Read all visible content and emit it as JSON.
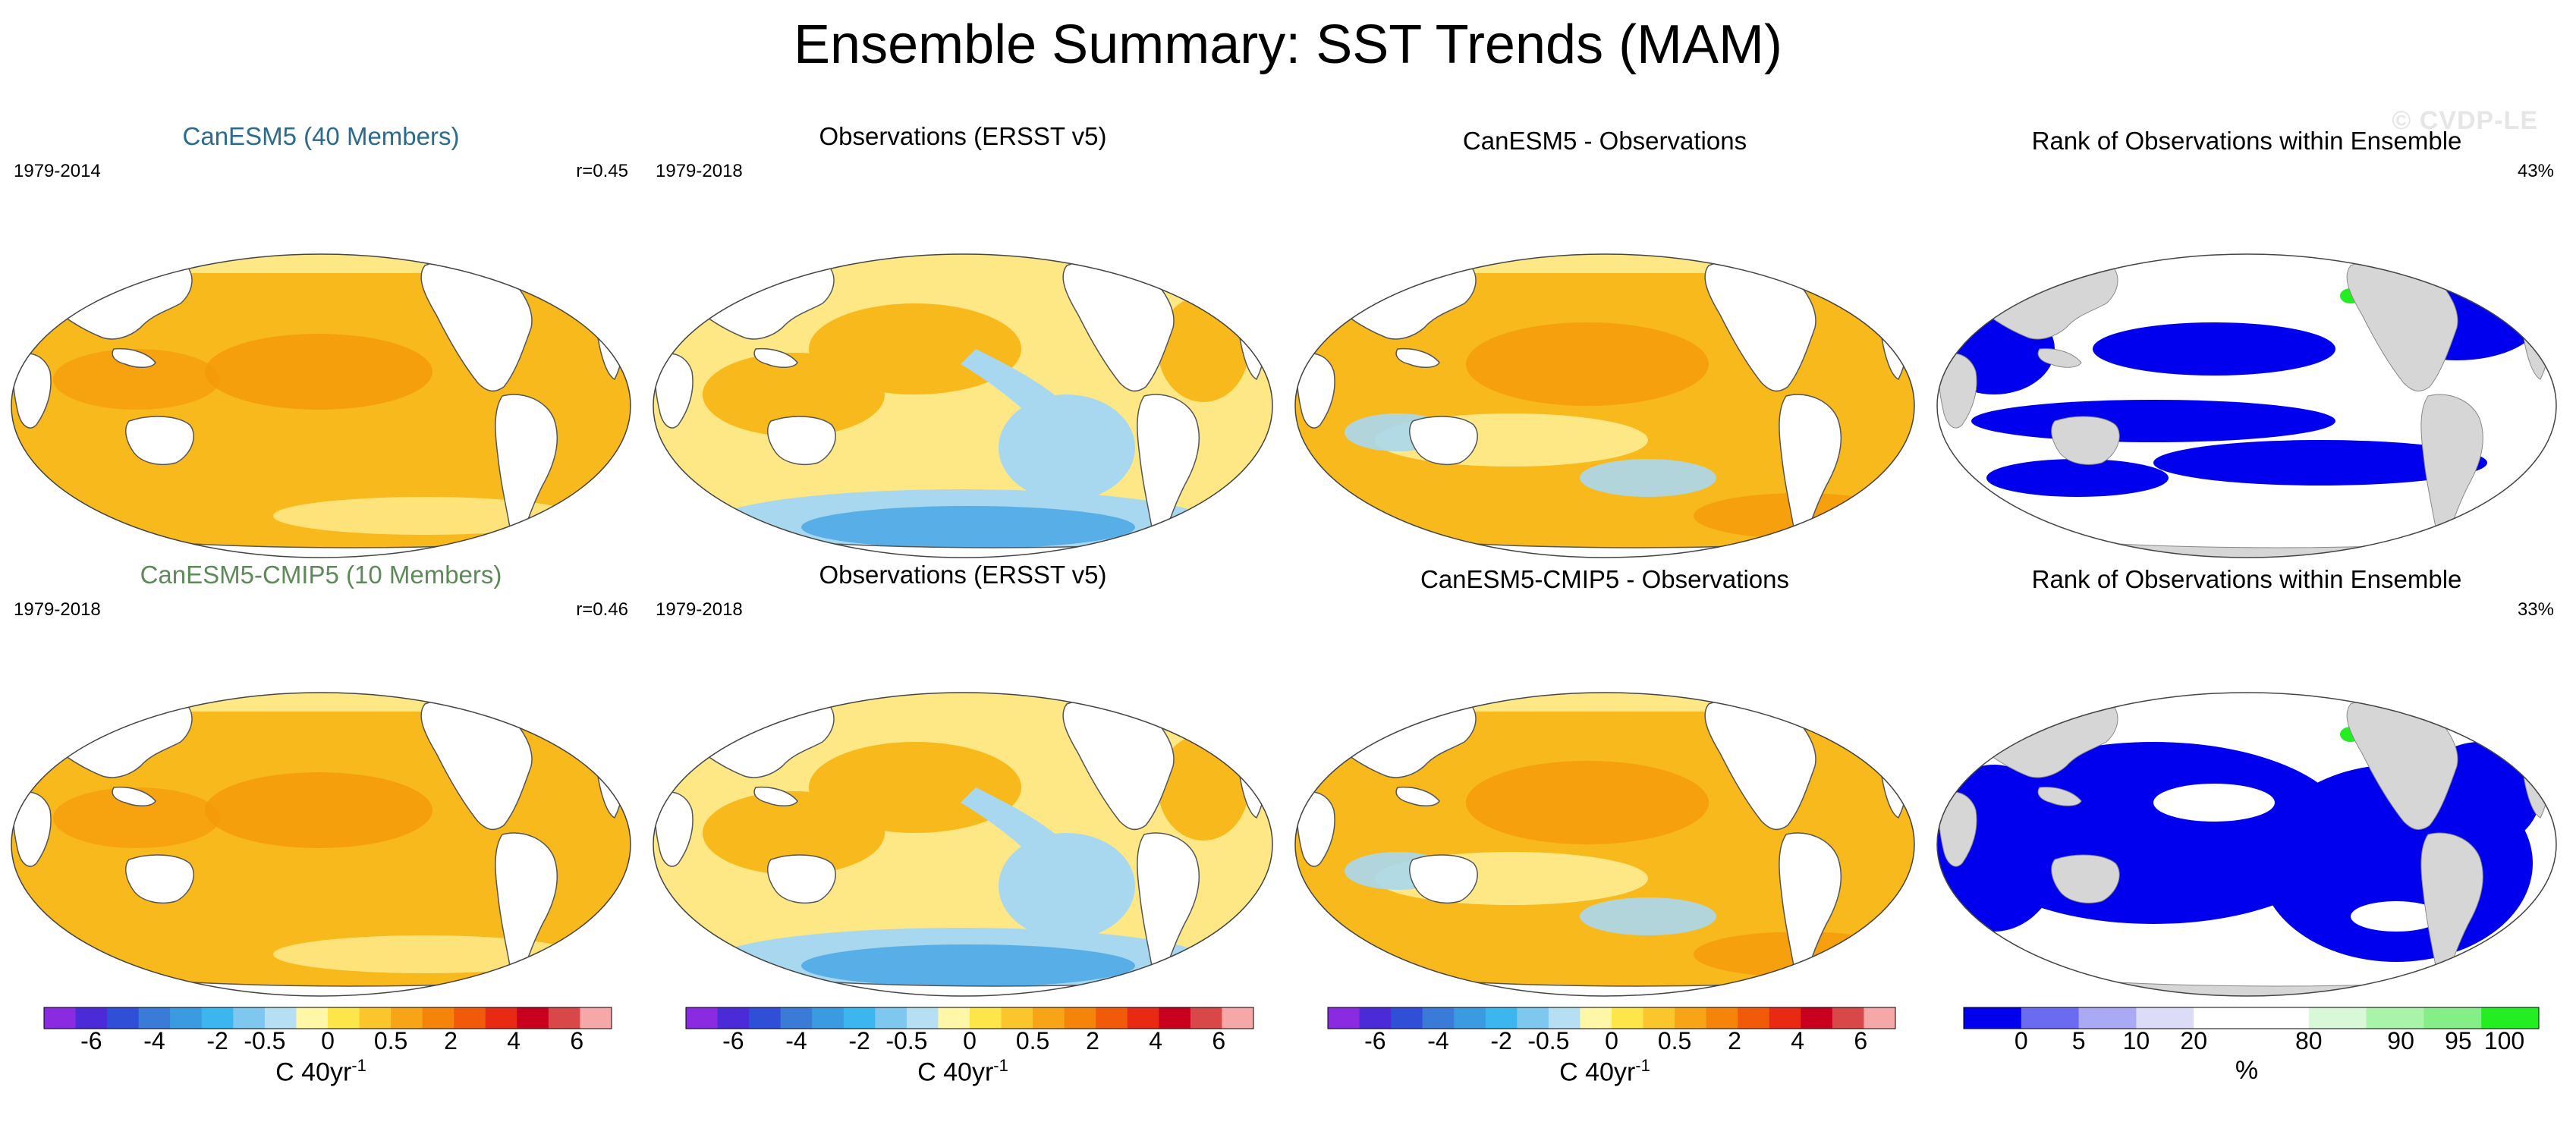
{
  "title": "Ensemble Summary: SST Trends (MAM)",
  "watermark": "© CVDP-LE",
  "colors": {
    "model_title_top": "#2a6b8e",
    "model_title_bottom": "#5e8a5a",
    "ocean_warm": "#f7b91c",
    "ocean_light": "#fde885",
    "ocean_orange": "#f59a0a",
    "ocean_cool": "#a8d8f0",
    "ocean_blue": "#4aa8e6",
    "land": "#ffffff",
    "land_gray": "#d6d6d6",
    "rank_low": "#0000ee",
    "rank_high": "#22ee22"
  },
  "panels": [
    {
      "id": "r1c1",
      "title": "CanESM5 (40 Members)",
      "left_label": "1979-2014",
      "right_label": "r=0.45",
      "type": "trend"
    },
    {
      "id": "r1c2",
      "title": "Observations (ERSST v5)",
      "left_label": "1979-2018",
      "right_label": "",
      "type": "trend"
    },
    {
      "id": "r1c3",
      "title": "CanESM5 - Observations",
      "left_label": "",
      "right_label": "",
      "type": "trend"
    },
    {
      "id": "r1c4",
      "title": "Rank of Observations within Ensemble",
      "left_label": "",
      "right_label": "43%",
      "type": "rank"
    },
    {
      "id": "r2c1",
      "title": "CanESM5-CMIP5 (10 Members)",
      "left_label": "1979-2018",
      "right_label": "r=0.46",
      "type": "trend"
    },
    {
      "id": "r2c2",
      "title": "Observations (ERSST v5)",
      "left_label": "1979-2018",
      "right_label": "",
      "type": "trend"
    },
    {
      "id": "r2c3",
      "title": "CanESM5-CMIP5 - Observations",
      "left_label": "",
      "right_label": "",
      "type": "trend"
    },
    {
      "id": "r2c4",
      "title": "Rank of Observations within Ensemble",
      "left_label": "",
      "right_label": "33%",
      "type": "rank"
    }
  ],
  "chart_data": {
    "type": "heatmap",
    "title": "Ensemble Summary: SST Trends (MAM)",
    "projection": "Robinson (Pacific-centered global maps)",
    "trend_colorbar": {
      "colors": [
        "#8a2be2",
        "#4b2bd8",
        "#2f4fd6",
        "#3b7bd8",
        "#3a9be0",
        "#3cb6ee",
        "#7ec8ef",
        "#b7dff3",
        "#fff7a8",
        "#fde64a",
        "#fbc52c",
        "#f7a416",
        "#f4840a",
        "#f05a08",
        "#e82a14",
        "#c8001e",
        "#d84848",
        "#f6a8a8"
      ],
      "tick_labels": [
        "-6",
        "-4",
        "-2",
        "-0.5",
        "0",
        "0.5",
        "2",
        "4",
        "6"
      ],
      "unit": "C 40yr",
      "unit_exponent": "-1"
    },
    "rank_colorbar": {
      "colors": [
        "#0000ee",
        "#6b6bf0",
        "#aaaaf4",
        "#dcdcf8",
        "#ffffff",
        "#ffffff",
        "#d8f8d8",
        "#a8f4a8",
        "#86ee86",
        "#22ee22"
      ],
      "tick_labels": [
        "0",
        "5",
        "10",
        "20",
        "80",
        "90",
        "95",
        "100"
      ],
      "unit": "%"
    },
    "panel_summaries": [
      {
        "panel": "CanESM5 (40 Members)",
        "period": "1979-2014",
        "pattern_correlation": 0.45,
        "dominant_trend_range": [
          0.5,
          2
        ]
      },
      {
        "panel": "Observations (ERSST v5)",
        "period": "1979-2018",
        "dominant_trend_range": [
          -0.5,
          2
        ],
        "notable": "cooling in eastern Pacific and Southern Ocean"
      },
      {
        "panel": "CanESM5 - Observations",
        "dominant_trend_range": [
          0,
          2
        ]
      },
      {
        "panel": "Rank of Observations within Ensemble",
        "area_percent": 43
      },
      {
        "panel": "CanESM5-CMIP5 (10 Members)",
        "period": "1979-2018",
        "pattern_correlation": 0.46,
        "dominant_trend_range": [
          0.5,
          2
        ]
      },
      {
        "panel": "Observations (ERSST v5)",
        "period": "1979-2018",
        "dominant_trend_range": [
          -0.5,
          2
        ]
      },
      {
        "panel": "CanESM5-CMIP5 - Observations",
        "dominant_trend_range": [
          0,
          2
        ]
      },
      {
        "panel": "Rank of Observations within Ensemble",
        "area_percent": 33
      }
    ]
  }
}
